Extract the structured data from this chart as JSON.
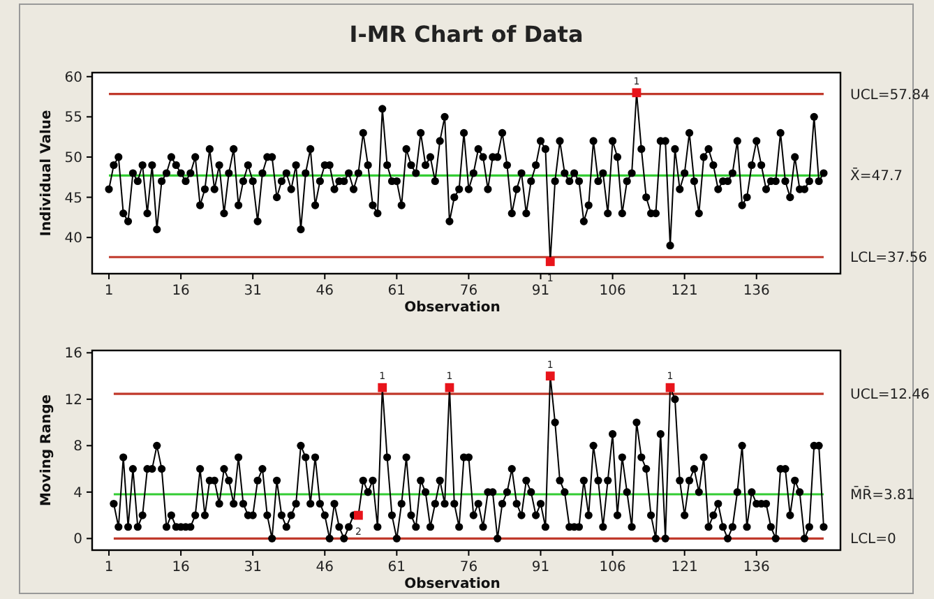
{
  "chart_data": [
    {
      "type": "line",
      "title": "I-MR Chart of Data",
      "xlabel": "Observation",
      "ylabel": "Individual Value",
      "xlim": [
        -2.5,
        153.5
      ],
      "ylim": [
        35.5,
        60.5
      ],
      "xticks": [
        1,
        16,
        31,
        46,
        61,
        76,
        91,
        106,
        121,
        136
      ],
      "yticks": [
        40,
        45,
        50,
        55,
        60
      ],
      "x": [
        1,
        2,
        3,
        4,
        5,
        6,
        7,
        8,
        9,
        10,
        11,
        12,
        13,
        14,
        15,
        16,
        17,
        18,
        19,
        20,
        21,
        22,
        23,
        24,
        25,
        26,
        27,
        28,
        29,
        30,
        31,
        32,
        33,
        34,
        35,
        36,
        37,
        38,
        39,
        40,
        41,
        42,
        43,
        44,
        45,
        46,
        47,
        48,
        49,
        50,
        51,
        52,
        53,
        54,
        55,
        56,
        57,
        58,
        59,
        60,
        61,
        62,
        63,
        64,
        65,
        66,
        67,
        68,
        69,
        70,
        71,
        72,
        73,
        74,
        75,
        76,
        77,
        78,
        79,
        80,
        81,
        82,
        83,
        84,
        85,
        86,
        87,
        88,
        89,
        90,
        91,
        92,
        93,
        94,
        95,
        96,
        97,
        98,
        99,
        100,
        101,
        102,
        103,
        104,
        105,
        106,
        107,
        108,
        109,
        110,
        111,
        112,
        113,
        114,
        115,
        116,
        117,
        118,
        119,
        120,
        121,
        122,
        123,
        124,
        125,
        126,
        127,
        128,
        129,
        130,
        131,
        132,
        133,
        134,
        135,
        136,
        137,
        138,
        139,
        140,
        141,
        142,
        143,
        144,
        145,
        146,
        147,
        148,
        149,
        150
      ],
      "series": [
        {
          "color": "#000000",
          "marker": "circle",
          "values": [
            46,
            49,
            50,
            43,
            42,
            48,
            47,
            49,
            43,
            49,
            41,
            47,
            48,
            50,
            49,
            48,
            47,
            48,
            50,
            44,
            46,
            51,
            46,
            49,
            43,
            48,
            51,
            44,
            47,
            49,
            47,
            42,
            48,
            50,
            50,
            45,
            47,
            48,
            46,
            49,
            41,
            48,
            51,
            44,
            47,
            49,
            49,
            46,
            47,
            47,
            48,
            46,
            48,
            53,
            49,
            44,
            43,
            56,
            49,
            47,
            47,
            44,
            51,
            49,
            48,
            53,
            49,
            50,
            47,
            52,
            55,
            42,
            45,
            46,
            53,
            46,
            48,
            51,
            50,
            46,
            50,
            50,
            53,
            49,
            43,
            46,
            48,
            43,
            47,
            49,
            52,
            51,
            37,
            47,
            52,
            48,
            47,
            48,
            47,
            42,
            44,
            52,
            47,
            48,
            43,
            52,
            50,
            43,
            47,
            48,
            58,
            51,
            45,
            43,
            43,
            52,
            52,
            39,
            51,
            46,
            48,
            53,
            47,
            43,
            50,
            51,
            49,
            46,
            47,
            47,
            48,
            52,
            44,
            45,
            49,
            52,
            49,
            46,
            47,
            47,
            53,
            47,
            45,
            50,
            46,
            46,
            47,
            55,
            47,
            48
          ]
        },
        {
          "type": "scatter",
          "color": "#e8141b",
          "marker": "square",
          "x": [
            93,
            111
          ],
          "values": [
            37,
            58
          ]
        }
      ],
      "ref_lines": [
        {
          "axis": "y",
          "value": 57.84,
          "label": "UCL=57.84",
          "color": "#c0392b"
        },
        {
          "axis": "y",
          "value": 47.7,
          "label": "X̄=47.7",
          "color": "#33cc33"
        },
        {
          "axis": "y",
          "value": 37.56,
          "label": "LCL=37.56",
          "color": "#c0392b"
        }
      ],
      "annotations": [
        {
          "text": "1",
          "x": 93,
          "y": 37
        },
        {
          "text": "1",
          "x": 111,
          "y": 58
        }
      ]
    },
    {
      "type": "line",
      "xlabel": "Observation",
      "ylabel": "Moving Range",
      "xlim": [
        -2.5,
        153.5
      ],
      "ylim": [
        -1,
        16.2
      ],
      "xticks": [
        1,
        16,
        31,
        46,
        61,
        76,
        91,
        106,
        121,
        136
      ],
      "yticks": [
        0,
        4,
        8,
        12,
        16
      ],
      "x": [
        2,
        3,
        4,
        5,
        6,
        7,
        8,
        9,
        10,
        11,
        12,
        13,
        14,
        15,
        16,
        17,
        18,
        19,
        20,
        21,
        22,
        23,
        24,
        25,
        26,
        27,
        28,
        29,
        30,
        31,
        32,
        33,
        34,
        35,
        36,
        37,
        38,
        39,
        40,
        41,
        42,
        43,
        44,
        45,
        46,
        47,
        48,
        49,
        50,
        51,
        52,
        53,
        54,
        55,
        56,
        57,
        58,
        59,
        60,
        61,
        62,
        63,
        64,
        65,
        66,
        67,
        68,
        69,
        70,
        71,
        72,
        73,
        74,
        75,
        76,
        77,
        78,
        79,
        80,
        81,
        82,
        83,
        84,
        85,
        86,
        87,
        88,
        89,
        90,
        91,
        92,
        93,
        94,
        95,
        96,
        97,
        98,
        99,
        100,
        101,
        102,
        103,
        104,
        105,
        106,
        107,
        108,
        109,
        110,
        111,
        112,
        113,
        114,
        115,
        116,
        117,
        118,
        119,
        120,
        121,
        122,
        123,
        124,
        125,
        126,
        127,
        128,
        129,
        130,
        131,
        132,
        133,
        134,
        135,
        136,
        137,
        138,
        139,
        140,
        141,
        142,
        143,
        144,
        145,
        146,
        147,
        148,
        149,
        150
      ],
      "series": [
        {
          "color": "#000000",
          "marker": "circle",
          "values": [
            3,
            1,
            7,
            1,
            6,
            1,
            2,
            6,
            6,
            8,
            6,
            1,
            2,
            1,
            1,
            1,
            1,
            2,
            6,
            2,
            5,
            5,
            3,
            6,
            5,
            3,
            7,
            3,
            2,
            2,
            5,
            6,
            2,
            0,
            5,
            2,
            1,
            2,
            3,
            8,
            7,
            3,
            7,
            3,
            2,
            0,
            3,
            1,
            0,
            1,
            2,
            2,
            5,
            4,
            5,
            1,
            13,
            7,
            2,
            0,
            3,
            7,
            2,
            1,
            5,
            4,
            1,
            3,
            5,
            3,
            13,
            3,
            1,
            7,
            7,
            2,
            3,
            1,
            4,
            4,
            0,
            3,
            4,
            6,
            3,
            2,
            5,
            4,
            2,
            3,
            1,
            14,
            10,
            5,
            4,
            1,
            1,
            1,
            5,
            2,
            8,
            5,
            1,
            5,
            9,
            2,
            7,
            4,
            1,
            10,
            7,
            6,
            2,
            0,
            9,
            0,
            13,
            12,
            5,
            2,
            5,
            6,
            4,
            7,
            1,
            2,
            3,
            1,
            0,
            1,
            4,
            8,
            1,
            4,
            3,
            3,
            3,
            1,
            0,
            6,
            6,
            2,
            5,
            4,
            0,
            1,
            8,
            8,
            1
          ]
        },
        {
          "type": "scatter",
          "color": "#e8141b",
          "marker": "square",
          "x": [
            53,
            58,
            72,
            93,
            118
          ],
          "values": [
            2,
            13,
            13,
            14,
            13
          ]
        }
      ],
      "ref_lines": [
        {
          "axis": "y",
          "value": 12.46,
          "label": "UCL=12.46",
          "color": "#c0392b"
        },
        {
          "axis": "y",
          "value": 3.81,
          "label": "M̄R̄=3.81",
          "color": "#33cc33"
        },
        {
          "axis": "y",
          "value": 0,
          "label": "LCL=0",
          "color": "#c0392b"
        }
      ],
      "annotations": [
        {
          "text": "2",
          "x": 53,
          "y": 2
        },
        {
          "text": "1",
          "x": 58,
          "y": 13
        },
        {
          "text": "1",
          "x": 72,
          "y": 13
        },
        {
          "text": "1",
          "x": 93,
          "y": 14
        },
        {
          "text": "1",
          "x": 118,
          "y": 13
        }
      ]
    }
  ]
}
